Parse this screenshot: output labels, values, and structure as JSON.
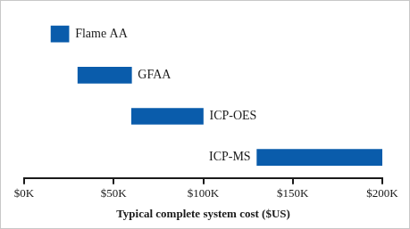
{
  "chart_data": {
    "type": "bar",
    "orientation": "horizontal",
    "x_label": "Typical complete system cost ($US)",
    "categories": [
      "Flame AA",
      "GFAA",
      "ICP-OES",
      "ICP-MS"
    ],
    "values": [
      [
        15000,
        25000
      ],
      [
        30000,
        60000
      ],
      [
        60000,
        100000
      ],
      [
        130000,
        200000
      ]
    ],
    "color": "#0a5cab",
    "xlim": [
      0,
      200000
    ],
    "xticks": [
      {
        "value": 0,
        "label": "$0K"
      },
      {
        "value": 50000,
        "label": "$50K"
      },
      {
        "value": 100000,
        "label": "$100K"
      },
      {
        "value": 150000,
        "label": "$150K"
      },
      {
        "value": 200000,
        "label": "$200K"
      }
    ],
    "grid": false,
    "tick_labels": "x"
  }
}
